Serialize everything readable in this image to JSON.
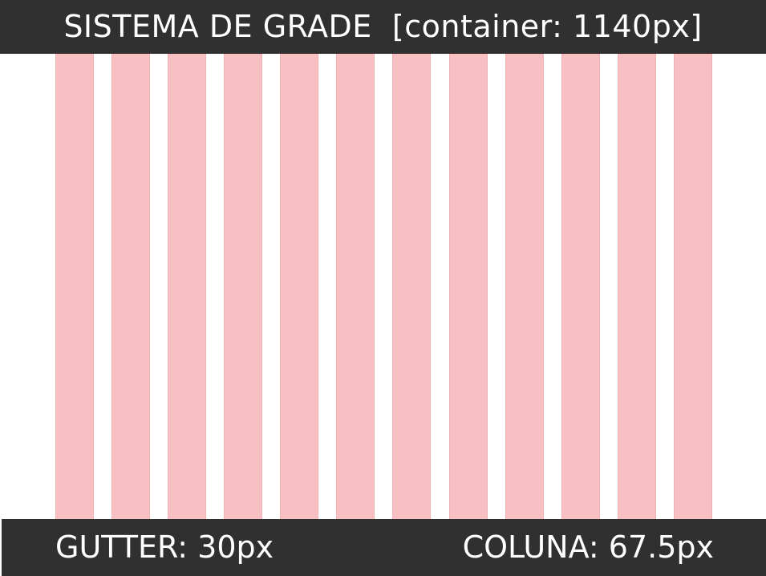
{
  "header": {
    "title": "SISTEMA DE GRADE  [container: 1140px]"
  },
  "footer": {
    "gutter_label": "GUTTER: 30px",
    "column_label": "COLUNA: 67.5px"
  },
  "grid": {
    "column_count": 12,
    "column_color": "#f8c0c2",
    "bar_color": "#303030"
  }
}
